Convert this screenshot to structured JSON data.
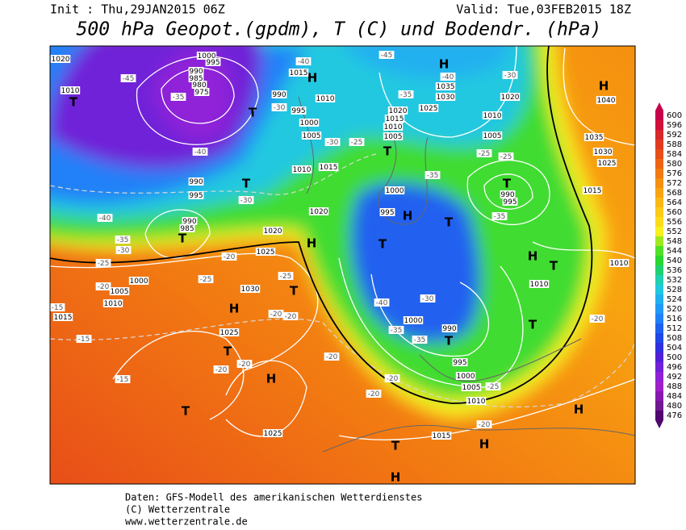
{
  "header": {
    "init": "Init : Thu,29JAN2015 06Z",
    "valid": "Valid: Tue,03FEB2015 18Z",
    "title": "500 hPa Geopot.(gpdm), T (C) und Bodendr. (hPa)"
  },
  "footer": [
    "Daten: GFS-Modell des amerikanischen Wetterdienstes",
    "(C) Wetterzentrale",
    "www.wetterzentrale.de"
  ],
  "colorbar": {
    "labels": [
      600,
      596,
      592,
      588,
      584,
      580,
      576,
      572,
      568,
      564,
      560,
      556,
      552,
      548,
      544,
      540,
      536,
      532,
      528,
      524,
      520,
      516,
      512,
      508,
      504,
      500,
      496,
      492,
      488,
      484,
      480,
      476
    ],
    "colors": [
      "#c8004c",
      "#d0103a",
      "#d8282a",
      "#e03a20",
      "#e84e18",
      "#ee6414",
      "#f27a12",
      "#f59010",
      "#f8a410",
      "#fab814",
      "#fcca18",
      "#fddc1c",
      "#f8f020",
      "#a0e820",
      "#50e028",
      "#28d830",
      "#20d070",
      "#20d0b0",
      "#20c8e0",
      "#20b0f0",
      "#2098f8",
      "#2080f8",
      "#2060f0",
      "#2048e8",
      "#3030e0",
      "#5020d8",
      "#7020d8",
      "#9020d8",
      "#a020c8",
      "#8818b0",
      "#701890",
      "#500870"
    ]
  },
  "map_labels": [
    "H",
    "H",
    "H",
    "H",
    "H",
    "H",
    "H",
    "H",
    "H",
    "H",
    "H",
    "T",
    "T",
    "T",
    "T",
    "T",
    "T",
    "T",
    "T",
    "T",
    "T",
    "T",
    "T",
    "T",
    "T",
    "T",
    "1020",
    "1010",
    "1015",
    "1000",
    "995",
    "990",
    "985",
    "980",
    "975",
    "990",
    "995",
    "1000",
    "1005",
    "1010",
    "1015",
    "1010",
    "1035",
    "1030",
    "1025",
    "1020",
    "1015",
    "1010",
    "1005",
    "1020",
    "1005",
    "1010",
    "1000",
    "995",
    "990",
    "995",
    "1015",
    "1035",
    "1030",
    "1025",
    "1040",
    "1020",
    "1020",
    "1025",
    "1030",
    "990",
    "995",
    "990",
    "985",
    "1000",
    "1005",
    "1010",
    "1015",
    "1025",
    "1025",
    "1015",
    "1010",
    "1005",
    "1000",
    "995",
    "990",
    "1000",
    "1010",
    "1010",
    "-40",
    "-35",
    "-30",
    "-25",
    "-20",
    "-15",
    "-15",
    "-20",
    "-25",
    "-20",
    "-20",
    "-25",
    "-15",
    "-20",
    "-20",
    "-20",
    "-20",
    "-20",
    "-25",
    "-20",
    "-20",
    "-30",
    "-25",
    "-35",
    "-35",
    "-25",
    "-25",
    "-45",
    "-40",
    "-30",
    "-35",
    "-40",
    "-45",
    "-35",
    "-40",
    "-30",
    "-30",
    "-40",
    "-30",
    "-35",
    "-35"
  ]
}
